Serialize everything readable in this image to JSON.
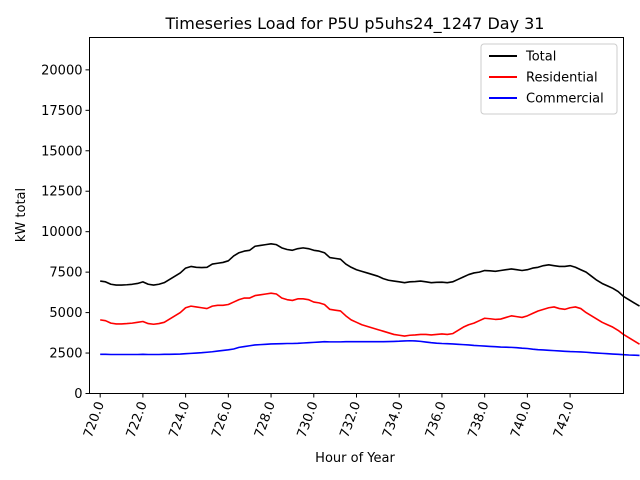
{
  "chart_data": {
    "type": "line",
    "title": "Timeseries Load for P5U p5uhs24_1247  Day 31",
    "xlabel": "Hour of Year",
    "ylabel": "kW total",
    "xlim": [
      719.5,
      744.5
    ],
    "ylim": [
      0,
      22000
    ],
    "x_ticks": [
      720,
      722,
      724,
      726,
      728,
      730,
      732,
      734,
      736,
      738,
      740,
      742
    ],
    "x_tick_labels": [
      "720.0",
      "722.0",
      "724.0",
      "726.0",
      "728.0",
      "730.0",
      "732.0",
      "734.0",
      "736.0",
      "738.0",
      "740.0",
      "742.0"
    ],
    "y_ticks": [
      0,
      2500,
      5000,
      7500,
      10000,
      12500,
      15000,
      17500,
      20000
    ],
    "y_tick_labels": [
      "0",
      "2500",
      "5000",
      "7500",
      "10000",
      "12500",
      "15000",
      "17500",
      "20000"
    ],
    "legend_position": "top-right",
    "x_start": 720,
    "x_step": 0.25,
    "series": [
      {
        "name": "Total",
        "color": "#000000",
        "values": [
          6950,
          6900,
          6750,
          6700,
          6700,
          6720,
          6750,
          6800,
          6900,
          6750,
          6700,
          6750,
          6850,
          7050,
          7250,
          7450,
          7750,
          7850,
          7800,
          7780,
          7800,
          8000,
          8050,
          8100,
          8200,
          8500,
          8700,
          8800,
          8850,
          9100,
          9150,
          9200,
          9250,
          9200,
          9000,
          8900,
          8850,
          8950,
          9000,
          8950,
          8850,
          8800,
          8700,
          8400,
          8350,
          8300,
          8000,
          7800,
          7650,
          7550,
          7450,
          7350,
          7250,
          7100,
          7000,
          6950,
          6900,
          6850,
          6900,
          6920,
          6950,
          6900,
          6850,
          6870,
          6880,
          6850,
          6900,
          7050,
          7200,
          7350,
          7450,
          7500,
          7600,
          7580,
          7550,
          7600,
          7650,
          7700,
          7650,
          7600,
          7650,
          7750,
          7800,
          7900,
          7950,
          7900,
          7850,
          7850,
          7900,
          7800,
          7650,
          7500,
          7250,
          7000,
          6800,
          6650,
          6500,
          6300,
          6000,
          5800,
          5600,
          5400
        ]
      },
      {
        "name": "Residential",
        "color": "#ff0000",
        "values": [
          4550,
          4500,
          4350,
          4300,
          4300,
          4320,
          4350,
          4400,
          4450,
          4320,
          4280,
          4320,
          4400,
          4600,
          4800,
          5000,
          5300,
          5400,
          5350,
          5300,
          5250,
          5400,
          5450,
          5450,
          5500,
          5650,
          5800,
          5900,
          5900,
          6050,
          6100,
          6150,
          6200,
          6150,
          5900,
          5800,
          5750,
          5850,
          5850,
          5800,
          5650,
          5600,
          5500,
          5200,
          5150,
          5100,
          4800,
          4550,
          4400,
          4250,
          4150,
          4050,
          3950,
          3850,
          3750,
          3650,
          3600,
          3550,
          3600,
          3620,
          3650,
          3650,
          3620,
          3650,
          3680,
          3650,
          3700,
          3900,
          4100,
          4250,
          4350,
          4500,
          4650,
          4620,
          4580,
          4600,
          4700,
          4800,
          4750,
          4700,
          4800,
          4950,
          5100,
          5200,
          5300,
          5350,
          5250,
          5200,
          5300,
          5350,
          5250,
          5000,
          4800,
          4600,
          4400,
          4250,
          4100,
          3900,
          3650,
          3450,
          3250,
          3050
        ]
      },
      {
        "name": "Commercial",
        "color": "#0000ff",
        "values": [
          2420,
          2420,
          2410,
          2410,
          2410,
          2410,
          2410,
          2410,
          2420,
          2410,
          2410,
          2410,
          2420,
          2420,
          2430,
          2440,
          2460,
          2480,
          2500,
          2520,
          2550,
          2580,
          2620,
          2660,
          2700,
          2750,
          2850,
          2900,
          2950,
          3000,
          3020,
          3040,
          3060,
          3070,
          3080,
          3090,
          3090,
          3100,
          3120,
          3140,
          3160,
          3180,
          3200,
          3190,
          3190,
          3190,
          3200,
          3200,
          3200,
          3200,
          3200,
          3200,
          3200,
          3200,
          3210,
          3220,
          3230,
          3250,
          3260,
          3250,
          3220,
          3180,
          3140,
          3110,
          3090,
          3080,
          3060,
          3040,
          3020,
          3000,
          2970,
          2950,
          2930,
          2910,
          2890,
          2870,
          2860,
          2850,
          2830,
          2800,
          2780,
          2740,
          2710,
          2690,
          2670,
          2650,
          2630,
          2610,
          2590,
          2580,
          2570,
          2550,
          2520,
          2500,
          2480,
          2460,
          2440,
          2420,
          2400,
          2380,
          2370,
          2350
        ]
      }
    ]
  }
}
